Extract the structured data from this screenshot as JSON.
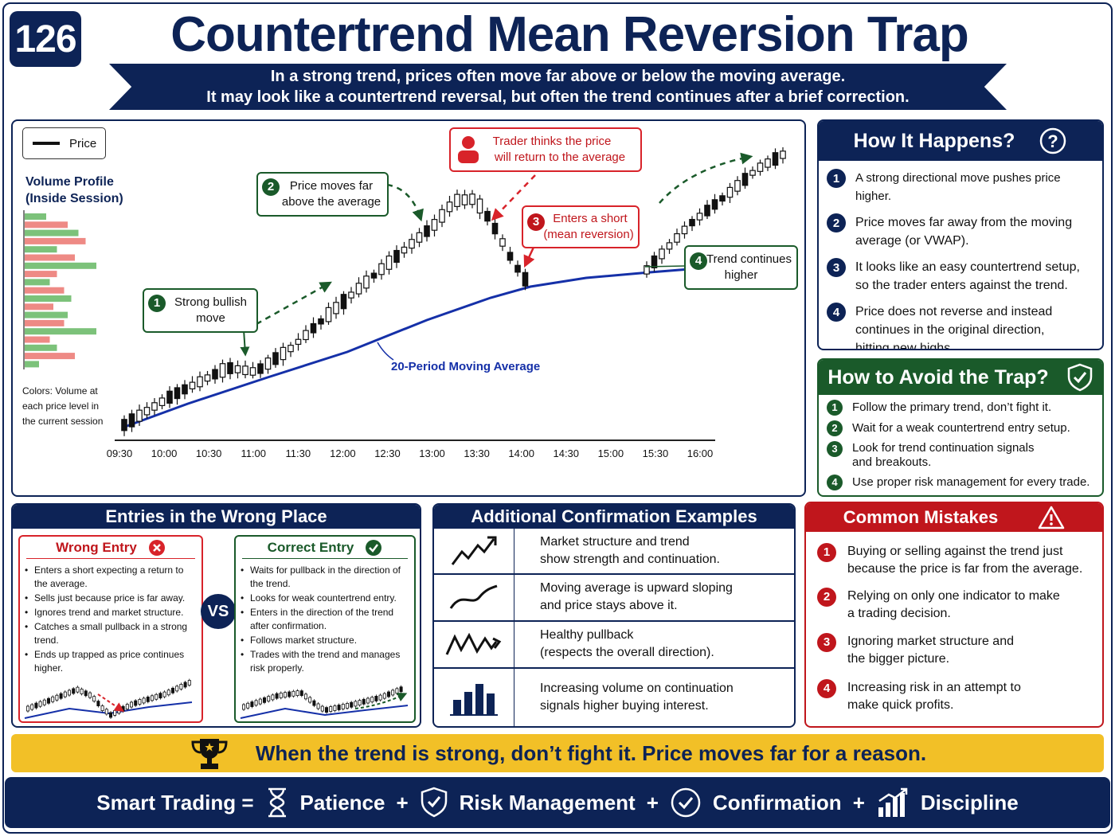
{
  "badge": "126",
  "title": "Countertrend Mean Reversion Trap",
  "subtitle": {
    "line1": "In a strong trend, prices often move far above or below the moving average.",
    "line2": "It may look like a countertrend reversal, but often the trend continues after a brief correction."
  },
  "colors": {
    "navy": "#0d2356",
    "green": "#1a5a2a",
    "red": "#c0161c",
    "yellow": "#f2c027",
    "ma_blue": "#1530a8"
  },
  "chart": {
    "legend": "Price",
    "volume_profile_title_1": "Volume Profile",
    "volume_profile_title_2": "(Inside Session)",
    "volume_note_1": "Colors: Volume at",
    "volume_note_2": "each price level in",
    "volume_note_3": "the current session",
    "ma_label": "20-Period Moving Average",
    "callouts": {
      "c1_num": "1",
      "c1_line1": "Strong bullish",
      "c1_line2": "move",
      "c2_num": "2",
      "c2_line1": "Price moves far",
      "c2_line2": "above the average",
      "trader_line1": "Trader thinks the price",
      "trader_line2": "will return to the average",
      "c3_num": "3",
      "c3_line1": "Enters a short",
      "c3_line2": "(mean reversion)",
      "c4_num": "4",
      "c4_line1": "Trend continues",
      "c4_line2": "higher"
    }
  },
  "chart_data": {
    "type": "candlestick",
    "x_ticks": [
      "09:30",
      "10:00",
      "10:30",
      "11:00",
      "11:30",
      "12:00",
      "12:30",
      "13:00",
      "13:30",
      "14:00",
      "14:30",
      "15:00",
      "15:30",
      "16:00"
    ],
    "series": [
      {
        "name": "Price",
        "shape": "uptrend, sharp pullback after 13:30, then continuation to new highs"
      },
      {
        "name": "20-Period Moving Average",
        "shape": "steadily rising"
      }
    ],
    "volume_profile": [
      0.3,
      0.6,
      0.75,
      0.85,
      0.45,
      0.7,
      1.0,
      0.45,
      0.35,
      0.55,
      0.65,
      0.4,
      0.6,
      0.55,
      1.0,
      0.35,
      0.45,
      0.7,
      0.2
    ]
  },
  "how_it_happens": {
    "title": "How It Happens?",
    "items": [
      {
        "num": "1",
        "text": "A strong directional move pushes price higher."
      },
      {
        "num": "2",
        "text_1": "Price moves far away from the moving",
        "text_2": "average (or VWAP)."
      },
      {
        "num": "3",
        "text_1": "It looks like an easy countertrend setup,",
        "text_2": "so the trader enters against the trend."
      },
      {
        "num": "4",
        "text_1": "Price does not reverse and instead",
        "text_2": "continues in the original direction,",
        "text_3": "hitting new highs."
      }
    ]
  },
  "avoid": {
    "title": "How to Avoid the Trap?",
    "items": [
      {
        "num": "1",
        "text": "Follow the primary trend, don’t fight it."
      },
      {
        "num": "2",
        "text": "Wait for a weak countertrend entry setup."
      },
      {
        "num": "3",
        "text_1": "Look for trend continuation signals",
        "text_2": "and breakouts."
      },
      {
        "num": "4",
        "text": "Use proper risk management for every trade."
      }
    ]
  },
  "entries": {
    "title": "Entries in the Wrong Place",
    "vs": "VS",
    "wrong": {
      "title": "Wrong Entry",
      "bullets": [
        "Enters a short expecting a return to the average.",
        "Sells just because price is far away.",
        "Ignores trend and market structure.",
        "Catches a small pullback in a strong trend.",
        "Ends up trapped as price continues higher."
      ]
    },
    "correct": {
      "title": "Correct Entry",
      "bullets": [
        "Waits for pullback in the direction of the trend.",
        "Looks for weak countertrend entry.",
        "Enters in the direction of the trend after confirmation.",
        "Follows market structure.",
        "Trades with the trend and manages risk properly."
      ]
    }
  },
  "confirm": {
    "title": "Additional Confirmation Examples",
    "rows": [
      {
        "icon": "trend-up-icon",
        "line1": "Market structure and trend",
        "line2": "show strength and continuation."
      },
      {
        "icon": "curve-up-icon",
        "line1": "Moving average is upward sloping",
        "line2": "and price stays above it."
      },
      {
        "icon": "zigzag-icon",
        "line1": "Healthy pullback",
        "line2": "(respects the overall direction)."
      },
      {
        "icon": "bar-chart-icon",
        "line1": "Increasing volume on continuation",
        "line2": "signals higher buying interest."
      }
    ]
  },
  "mistakes": {
    "title": "Common Mistakes",
    "items": [
      {
        "num": "1",
        "line1": "Buying or selling against the trend just",
        "line2": "because the price is far from the average."
      },
      {
        "num": "2",
        "line1": "Relying on only one indicator to make",
        "line2": "a trading decision."
      },
      {
        "num": "3",
        "line1": "Ignoring market structure and",
        "line2": "the bigger picture."
      },
      {
        "num": "4",
        "line1": "Increasing risk in an attempt to",
        "line2": "make quick profits."
      }
    ]
  },
  "banner": "When the trend is strong, don’t fight it. Price moves far for a reason.",
  "footer": {
    "lead": "Smart Trading =",
    "items": [
      "Patience",
      "Risk Management",
      "Confirmation",
      "Discipline"
    ],
    "plus": "+"
  }
}
